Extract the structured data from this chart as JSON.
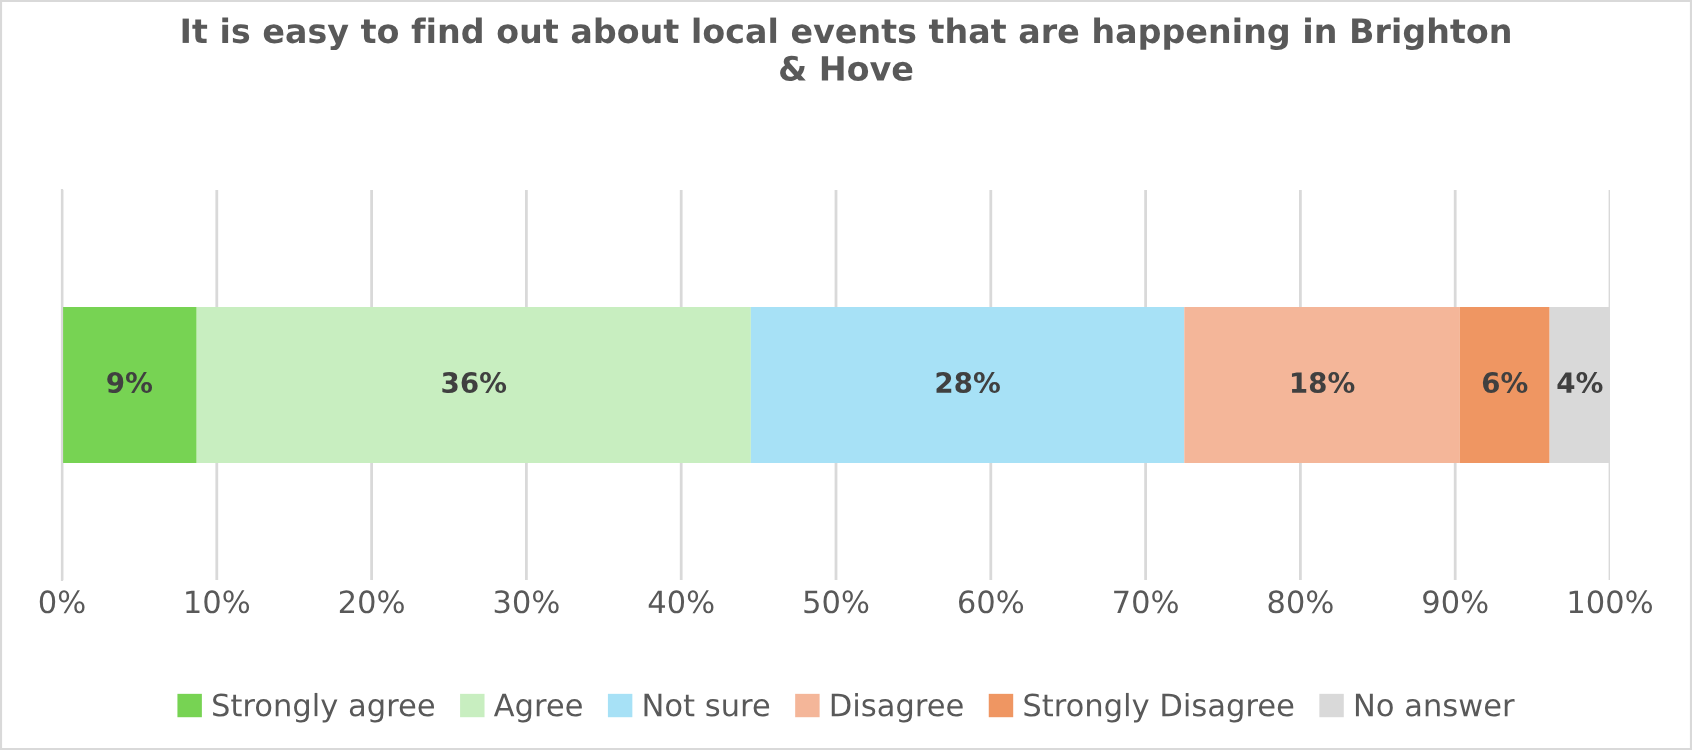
{
  "chart_data": {
    "type": "bar",
    "orientation": "horizontal",
    "stacked": true,
    "title": "It is easy to find out about local events that are happening in Brighton\n& Hove",
    "categories": [
      null
    ],
    "series": [
      {
        "name": "Strongly agree",
        "color": "#77d353",
        "values": [
          8.7
        ],
        "value_labels": [
          "9%"
        ]
      },
      {
        "name": "Agree",
        "color": "#c8eec0",
        "values": [
          35.8
        ],
        "value_labels": [
          "36%"
        ]
      },
      {
        "name": "Not sure",
        "color": "#a7e1f6",
        "values": [
          28.0
        ],
        "value_labels": [
          "28%"
        ]
      },
      {
        "name": "Disagree",
        "color": "#f4b699",
        "values": [
          17.8
        ],
        "value_labels": [
          "18%"
        ]
      },
      {
        "name": "Strongly Disagree",
        "color": "#ef9662",
        "values": [
          5.8
        ],
        "value_labels": [
          "6%"
        ]
      },
      {
        "name": "No answer",
        "color": "#d9d9d9",
        "values": [
          3.9
        ],
        "value_labels": [
          "4%"
        ]
      }
    ],
    "xlim": [
      0,
      100
    ],
    "xticks": [
      {
        "value": 0,
        "label": "0%"
      },
      {
        "value": 10,
        "label": "10%"
      },
      {
        "value": 20,
        "label": "20%"
      },
      {
        "value": 30,
        "label": "30%"
      },
      {
        "value": 40,
        "label": "40%"
      },
      {
        "value": 50,
        "label": "50%"
      },
      {
        "value": 60,
        "label": "60%"
      },
      {
        "value": 70,
        "label": "70%"
      },
      {
        "value": 80,
        "label": "80%"
      },
      {
        "value": 90,
        "label": "90%"
      },
      {
        "value": 100,
        "label": "100%"
      }
    ],
    "grid": "x",
    "legend": "bottom",
    "tick_labels": "x"
  }
}
